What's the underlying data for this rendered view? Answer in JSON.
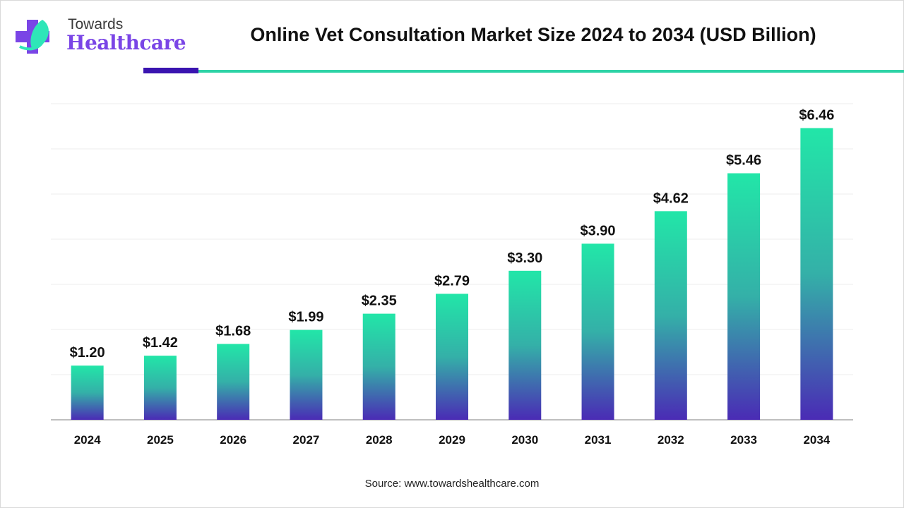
{
  "logo": {
    "line1": "Towards",
    "line2": "Healthcare"
  },
  "header": {
    "title": "Online Vet Consultation Market Size 2024 to 2034 (USD Billion)"
  },
  "source": "Source: www.towardshealthcare.com",
  "colors": {
    "bar_top": "#22e6a8",
    "bar_bottom": "#4a2bb5",
    "accent_dark": "#3a14b0",
    "accent_teal": "#2ed3a6",
    "logo_purple": "#7a45e6"
  },
  "chart_data": {
    "type": "bar",
    "title": "Online Vet Consultation Market Size 2024 to 2034 (USD Billion)",
    "categories": [
      "2024",
      "2025",
      "2026",
      "2027",
      "2028",
      "2029",
      "2030",
      "2031",
      "2032",
      "2033",
      "2034"
    ],
    "values": [
      1.2,
      1.42,
      1.68,
      1.99,
      2.35,
      2.79,
      3.3,
      3.9,
      4.62,
      5.46,
      6.46
    ],
    "data_labels": [
      "$1.20",
      "$1.42",
      "$1.68",
      "$1.99",
      "$2.35",
      "$2.79",
      "$3.30",
      "$3.90",
      "$4.62",
      "$5.46",
      "$6.46"
    ],
    "xlabel": "",
    "ylabel": "",
    "ylim": [
      0,
      7
    ],
    "grid": true,
    "y_axis_labels_shown": false
  }
}
